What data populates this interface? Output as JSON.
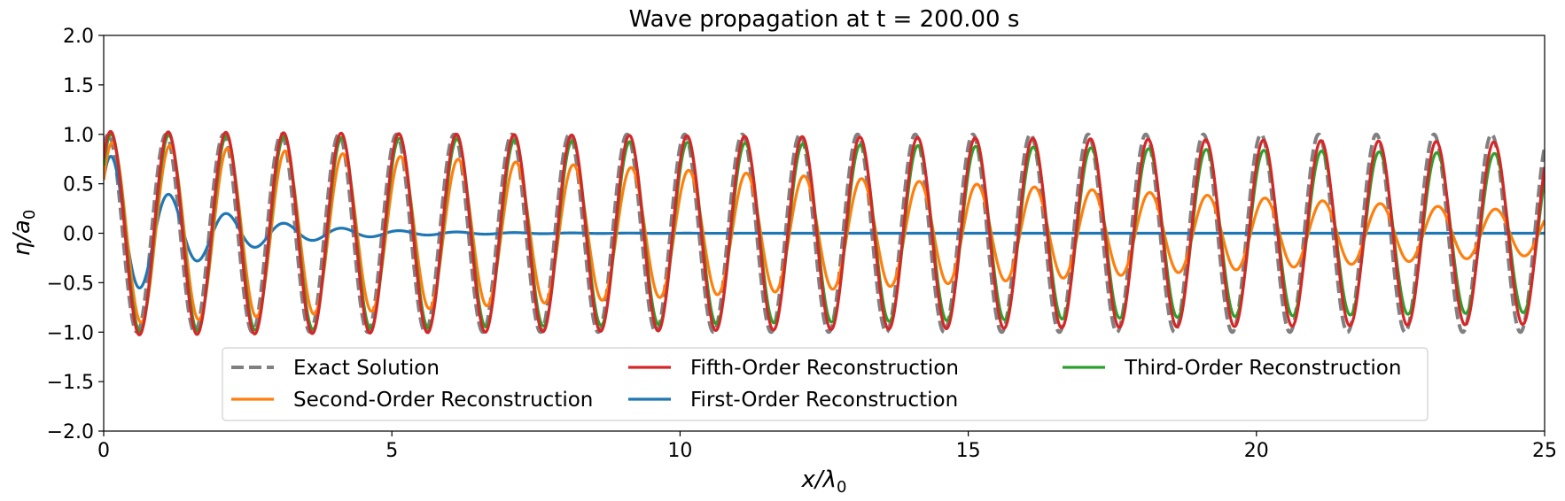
{
  "chart_data": {
    "type": "line",
    "title": "Wave propagation at t = 200.00 s",
    "xlabel": {
      "base": "x/λ",
      "sub": "0"
    },
    "ylabel": {
      "base": "η/a",
      "sub": "0"
    },
    "xlim": [
      0,
      25
    ],
    "ylim": [
      -2.0,
      2.0
    ],
    "xticks": [
      0,
      5,
      10,
      15,
      20,
      25
    ],
    "xtick_labels": [
      "0",
      "5",
      "10",
      "15",
      "20",
      "25"
    ],
    "yticks": [
      2.0,
      1.5,
      1.0,
      0.5,
      0.0,
      -0.5,
      -1.0,
      -1.5,
      -2.0
    ],
    "ytick_labels": [
      "2.0",
      "1.5",
      "1.0",
      "0.5",
      "0.0",
      "−0.5",
      "−1.0",
      "−1.5",
      "−2.0"
    ],
    "grid": false,
    "legend_position": "lower-center",
    "wave": {
      "wavelength": 1.0,
      "phase_shift": 0.17
    },
    "series": [
      {
        "name": "Exact Solution",
        "color": "#808080",
        "style": "dashed",
        "amplitude_start": 1.0,
        "amplitude_end": 1.0,
        "decay_rate": 0,
        "phase_lag": 0
      },
      {
        "name": "First-Order Reconstruction",
        "color": "#1f77b4",
        "style": "solid",
        "amplitude_start": 0.85,
        "amplitude_end": 0.0,
        "decay_rate": 0.68,
        "phase_lag": 0.06
      },
      {
        "name": "Second-Order Reconstruction",
        "color": "#ff7f0e",
        "style": "solid",
        "amplitude_start": 0.92,
        "amplitude_end": 0.22,
        "decay_rate": 0,
        "phase_lag": 0.07
      },
      {
        "name": "Third-Order Reconstruction",
        "color": "#2ca02c",
        "style": "solid",
        "amplitude_start": 1.0,
        "amplitude_end": 0.8,
        "decay_rate": 0,
        "phase_lag": 0.05
      },
      {
        "name": "Fifth-Order Reconstruction",
        "color": "#d62728",
        "style": "solid",
        "amplitude_start": 1.03,
        "amplitude_end": 0.92,
        "decay_rate": 0,
        "phase_lag": 0.04
      }
    ],
    "legend_order": [
      0,
      2,
      4,
      1,
      3
    ]
  }
}
